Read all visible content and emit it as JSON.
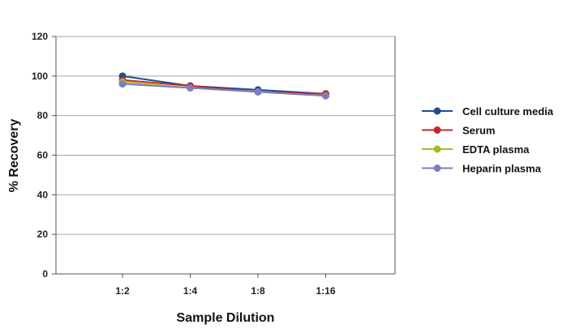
{
  "chart_data": {
    "type": "line",
    "categories": [
      "1:2",
      "1:4",
      "1:8",
      "1:16"
    ],
    "xlabel": "Sample Dilution",
    "ylabel": "% Recovery",
    "ylim": [
      0,
      120
    ],
    "yticks": [
      0,
      20,
      40,
      60,
      80,
      100,
      120
    ],
    "grid": "horizontal",
    "legend_position": "right",
    "series": [
      {
        "name": "Cell culture media",
        "color": "#1F4E96",
        "values": [
          100,
          95,
          93,
          91
        ]
      },
      {
        "name": "Serum",
        "color": "#C0282D",
        "values": [
          98,
          95,
          92,
          91
        ]
      },
      {
        "name": "EDTA plasma",
        "color": "#A3BE1E",
        "values": [
          97,
          94,
          92,
          90
        ]
      },
      {
        "name": "Heparin plasma",
        "color": "#7B7FC2",
        "values": [
          96,
          94,
          92,
          90
        ]
      }
    ]
  }
}
